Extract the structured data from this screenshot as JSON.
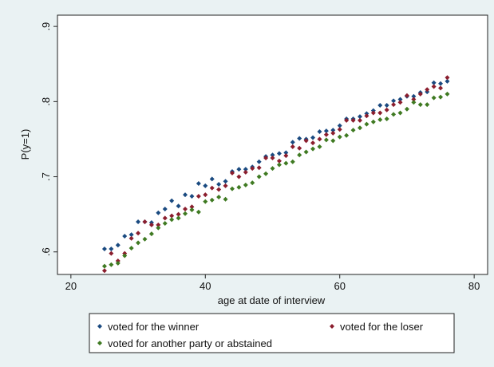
{
  "chart_data": {
    "type": "scatter",
    "title": "",
    "xlabel": "age at date of interview",
    "ylabel": "P(y=1)",
    "xlim": [
      18,
      82
    ],
    "ylim": [
      0.57,
      0.915
    ],
    "x_ticks": [
      20,
      40,
      60,
      80
    ],
    "x_tick_labels": [
      "20",
      "40",
      "60",
      "80"
    ],
    "y_ticks": [
      0.6,
      0.7,
      0.8,
      0.9
    ],
    "y_tick_labels": [
      ".6",
      ".7",
      ".8",
      ".9"
    ],
    "grid": false,
    "legend_position": "bottom",
    "colors": {
      "background": "#eaf2f3",
      "plot_background": "#ffffff",
      "winner": "#1a4a80",
      "loser": "#8b1e2e",
      "other": "#3f7a22"
    },
    "series": [
      {
        "name": "voted for the winner",
        "color": "#1a4a80",
        "x": [
          25,
          26,
          27,
          28,
          29,
          30,
          31,
          32,
          33,
          34,
          35,
          36,
          37,
          38,
          39,
          40,
          41,
          42,
          43,
          44,
          45,
          46,
          47,
          48,
          49,
          50,
          51,
          52,
          53,
          54,
          55,
          56,
          57,
          58,
          59,
          60,
          61,
          62,
          63,
          64,
          65,
          66,
          67,
          68,
          69,
          70,
          71,
          72,
          73,
          74,
          75,
          76
        ],
        "y": [
          0.604,
          0.604,
          0.609,
          0.621,
          0.623,
          0.64,
          0.64,
          0.639,
          0.652,
          0.657,
          0.668,
          0.661,
          0.676,
          0.674,
          0.691,
          0.688,
          0.697,
          0.69,
          0.694,
          0.707,
          0.71,
          0.71,
          0.713,
          0.72,
          0.727,
          0.729,
          0.731,
          0.732,
          0.746,
          0.751,
          0.75,
          0.752,
          0.76,
          0.761,
          0.762,
          0.768,
          0.777,
          0.777,
          0.78,
          0.784,
          0.788,
          0.795,
          0.795,
          0.801,
          0.803,
          0.807,
          0.807,
          0.812,
          0.813,
          0.825,
          0.824,
          0.827
        ]
      },
      {
        "name": "voted for the loser",
        "color": "#8b1e2e",
        "x": [
          25,
          26,
          27,
          28,
          29,
          30,
          31,
          32,
          33,
          34,
          35,
          36,
          37,
          38,
          39,
          40,
          41,
          42,
          43,
          44,
          45,
          46,
          47,
          48,
          49,
          50,
          51,
          52,
          53,
          54,
          55,
          56,
          57,
          58,
          59,
          60,
          61,
          62,
          63,
          64,
          65,
          66,
          67,
          68,
          69,
          70,
          71,
          72,
          73,
          74,
          75,
          76
        ],
        "y": [
          0.575,
          0.598,
          0.588,
          0.598,
          0.618,
          0.625,
          0.64,
          0.636,
          0.636,
          0.645,
          0.648,
          0.65,
          0.657,
          0.66,
          0.674,
          0.676,
          0.685,
          0.683,
          0.688,
          0.705,
          0.7,
          0.706,
          0.711,
          0.712,
          0.725,
          0.725,
          0.721,
          0.728,
          0.74,
          0.738,
          0.748,
          0.745,
          0.75,
          0.756,
          0.758,
          0.763,
          0.775,
          0.775,
          0.775,
          0.781,
          0.785,
          0.785,
          0.789,
          0.796,
          0.799,
          0.808,
          0.803,
          0.81,
          0.816,
          0.82,
          0.818,
          0.832
        ]
      },
      {
        "name": "voted for another party or abstained",
        "color": "#3f7a22",
        "x": [
          25,
          26,
          27,
          28,
          29,
          30,
          31,
          32,
          33,
          34,
          35,
          36,
          37,
          38,
          39,
          40,
          41,
          42,
          43,
          44,
          45,
          46,
          47,
          48,
          49,
          50,
          51,
          52,
          53,
          54,
          55,
          56,
          57,
          58,
          59,
          60,
          61,
          62,
          63,
          64,
          65,
          66,
          67,
          68,
          69,
          70,
          71,
          72,
          73,
          74,
          75,
          76
        ],
        "y": [
          0.581,
          0.583,
          0.585,
          0.595,
          0.605,
          0.612,
          0.617,
          0.624,
          0.632,
          0.638,
          0.643,
          0.645,
          0.651,
          0.656,
          0.653,
          0.667,
          0.669,
          0.673,
          0.67,
          0.684,
          0.686,
          0.689,
          0.692,
          0.7,
          0.704,
          0.711,
          0.716,
          0.718,
          0.72,
          0.729,
          0.733,
          0.737,
          0.74,
          0.749,
          0.748,
          0.753,
          0.755,
          0.762,
          0.765,
          0.77,
          0.773,
          0.776,
          0.777,
          0.783,
          0.785,
          0.79,
          0.799,
          0.796,
          0.796,
          0.805,
          0.806,
          0.81
        ]
      }
    ]
  }
}
